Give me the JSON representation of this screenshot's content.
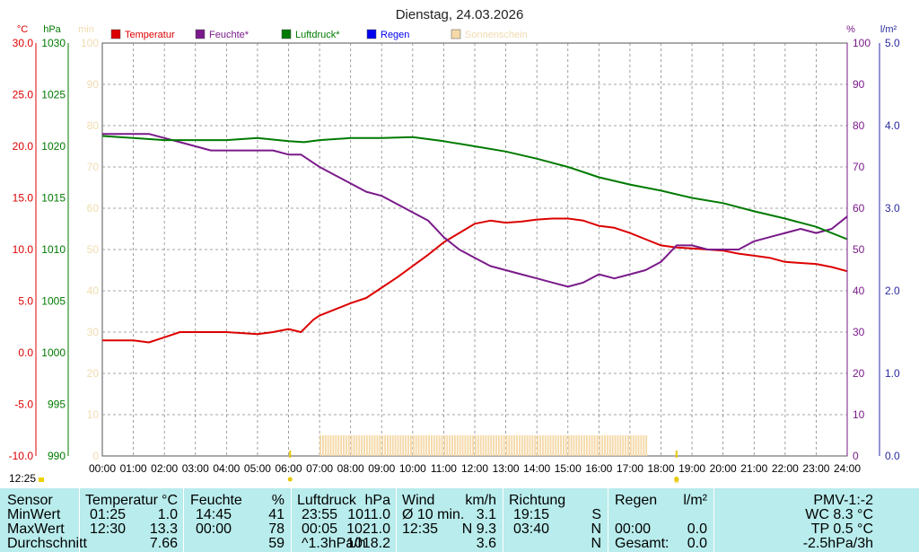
{
  "colors": {
    "temperature": "#dd0000",
    "humidity": "#7a1a8a",
    "pressure": "#007a00",
    "rain": "#0000ee",
    "sunshine": "#f5d9a8",
    "table_bg": "#b9ecec"
  },
  "chart_data": {
    "type": "line",
    "title": "Dienstag, 24.03.2026",
    "grid": true,
    "legend_placement": "top",
    "x_ticks": [
      "00:00",
      "01:00",
      "02:00",
      "03:00",
      "04:00",
      "05:00",
      "06:00",
      "07:00",
      "08:00",
      "09:00",
      "10:00",
      "11:00",
      "12:00",
      "13:00",
      "14:00",
      "15:00",
      "16:00",
      "17:00",
      "18:00",
      "19:00",
      "20:00",
      "21:00",
      "22:00",
      "23:00",
      "24:00"
    ],
    "axes": {
      "temperature": {
        "unit": "°C",
        "range": [
          -10,
          30
        ],
        "ticks": [
          "30.0",
          "25.0",
          "20.0",
          "15.0",
          "10.0",
          "5.0",
          "0.0",
          "-5.0",
          "-10.0"
        ]
      },
      "pressure": {
        "unit": "hPa",
        "range": [
          990,
          1030
        ],
        "ticks": [
          "1030",
          "1025",
          "1020",
          "1015",
          "1010",
          "1005",
          "1000",
          "995",
          "990"
        ]
      },
      "sunshine": {
        "unit": "min",
        "range": [
          0,
          100
        ],
        "ticks": [
          "100",
          "90",
          "80",
          "70",
          "60",
          "50",
          "40",
          "30",
          "20",
          "10",
          "0"
        ]
      },
      "humidity": {
        "unit": "%",
        "range": [
          0,
          100
        ],
        "ticks": [
          "100",
          "90",
          "80",
          "70",
          "60",
          "50",
          "40",
          "30",
          "20",
          "10",
          "0"
        ]
      },
      "rain": {
        "unit": "l/m²",
        "range": [
          0,
          5
        ],
        "ticks": [
          "5.0",
          "4.0",
          "3.0",
          "2.0",
          "1.0",
          "0.0"
        ]
      }
    },
    "legend": [
      {
        "label": "Temperatur",
        "key": "temperature"
      },
      {
        "label": "Feuchte*",
        "key": "humidity"
      },
      {
        "label": "Luftdruck*",
        "key": "pressure"
      },
      {
        "label": "Regen",
        "key": "rain"
      },
      {
        "label": "Sonnenschein",
        "key": "sunshine"
      }
    ],
    "series": [
      {
        "name": "Temperatur",
        "axis": "temperature",
        "x": [
          0,
          1,
          1.5,
          2,
          2.5,
          3,
          4,
          5,
          5.5,
          6,
          6.4,
          6.8,
          7,
          7.5,
          8,
          8.5,
          9,
          9.5,
          10,
          10.5,
          11,
          11.5,
          12,
          12.5,
          13,
          13.5,
          14,
          14.5,
          15,
          15.5,
          16,
          16.5,
          17,
          17.5,
          18,
          18.5,
          19,
          19.5,
          20,
          20.5,
          21,
          21.5,
          22,
          22.5,
          23,
          23.5,
          24
        ],
        "y": [
          1.2,
          1.2,
          1.0,
          1.5,
          2.0,
          2.0,
          2.0,
          1.8,
          2.0,
          2.3,
          2.0,
          3.2,
          3.6,
          4.2,
          4.8,
          5.3,
          6.3,
          7.3,
          8.4,
          9.5,
          10.7,
          11.6,
          12.5,
          12.8,
          12.6,
          12.7,
          12.9,
          13.0,
          13.0,
          12.8,
          12.3,
          12.1,
          11.6,
          11.0,
          10.4,
          10.2,
          10.1,
          10.0,
          9.9,
          9.6,
          9.4,
          9.2,
          8.8,
          8.7,
          8.6,
          8.3,
          7.9
        ]
      },
      {
        "name": "Feuchte*",
        "axis": "humidity",
        "x": [
          0,
          1,
          1.5,
          2,
          2.5,
          3,
          3.5,
          4,
          5,
          5.5,
          6,
          6.4,
          6.8,
          7,
          7.5,
          8,
          8.5,
          9,
          9.5,
          10,
          10.5,
          11,
          11.5,
          12,
          12.5,
          13,
          13.5,
          14,
          14.5,
          15,
          15.5,
          16,
          16.5,
          17,
          17.5,
          18,
          18.5,
          19,
          19.5,
          20,
          20.5,
          21,
          21.5,
          22,
          22.5,
          23,
          23.5,
          24
        ],
        "y": [
          78,
          78,
          78,
          77,
          76,
          75,
          74,
          74,
          74,
          74,
          73,
          73,
          71,
          70,
          68,
          66,
          64,
          63,
          61,
          59,
          57,
          53,
          50,
          48,
          46,
          45,
          44,
          43,
          42,
          41,
          42,
          44,
          43,
          44,
          45,
          47,
          51,
          51,
          50,
          50,
          50,
          52,
          53,
          54,
          55,
          54,
          55,
          58
        ]
      },
      {
        "name": "Luftdruck*",
        "axis": "pressure",
        "x": [
          0,
          1,
          2,
          3,
          4,
          5,
          6,
          6.5,
          7,
          8,
          9,
          10,
          11,
          12,
          13,
          14,
          15,
          16,
          17,
          18,
          19,
          20,
          21,
          22,
          23,
          24
        ],
        "y": [
          1021.0,
          1020.8,
          1020.6,
          1020.6,
          1020.6,
          1020.8,
          1020.5,
          1020.4,
          1020.6,
          1020.8,
          1020.8,
          1020.9,
          1020.5,
          1020.0,
          1019.5,
          1018.8,
          1018.0,
          1017.0,
          1016.3,
          1015.7,
          1015.0,
          1014.5,
          1013.7,
          1013.0,
          1012.2,
          1011.0
        ]
      },
      {
        "name": "Sonnenschein",
        "axis": "sunshine",
        "type": "bar",
        "start": 7.0,
        "end": 17.55,
        "value": 5
      }
    ],
    "markers": [
      {
        "x": 6.05,
        "label": "",
        "color": "#e8c800"
      },
      {
        "x": 18.5,
        "label": "0",
        "color": "#e8c800"
      }
    ]
  },
  "corner_time": "12:25",
  "table": {
    "headers": {
      "sensor": "Sensor",
      "temperature": "Temperatur",
      "temperature_unit": "°C",
      "humidity": "Feuchte",
      "humidity_unit": "%",
      "pressure": "Luftdruck",
      "pressure_unit": "hPa",
      "wind": "Wind",
      "wind_unit": "km/h",
      "direction": "Richtung",
      "rain": "Regen",
      "rain_unit": "l/m²",
      "pmv": "PMV-1:-2"
    },
    "rows": [
      {
        "label": "MinWert",
        "temp_time": "01:25",
        "temp_val": "1.0",
        "hum_time": "14:45",
        "hum_val": "41",
        "press_time": "23:55",
        "press_val": "1011.0",
        "wind_time": "Ø 10 min.",
        "wind_val": "3.1",
        "dir_time": "19:15",
        "dir_val": "S",
        "rain_time": "",
        "rain_val": "",
        "pmv": "WC 8.3 °C"
      },
      {
        "label": "MaxWert",
        "temp_time": "12:30",
        "temp_val": "13.3",
        "hum_time": "00:00",
        "hum_val": "78",
        "press_time": "00:05",
        "press_val": "1021.0",
        "wind_time": "12:35",
        "wind_val": "N 9.3",
        "dir_time": "03:40",
        "dir_val": "N",
        "rain_time": "00:00",
        "rain_val": "0.0",
        "pmv": "TP 0.5 °C"
      },
      {
        "label": "Durchschnitt",
        "temp_time": "",
        "temp_val": "7.66",
        "hum_time": "",
        "hum_val": "59",
        "press_time": "^1.3hPa/h",
        "press_val": "1018.2",
        "wind_time": "",
        "wind_val": "3.6",
        "dir_time": "",
        "dir_val": "N",
        "rain_time": "Gesamt:",
        "rain_val": "0.0",
        "pmv": "-2.5hPa/3h"
      }
    ]
  }
}
